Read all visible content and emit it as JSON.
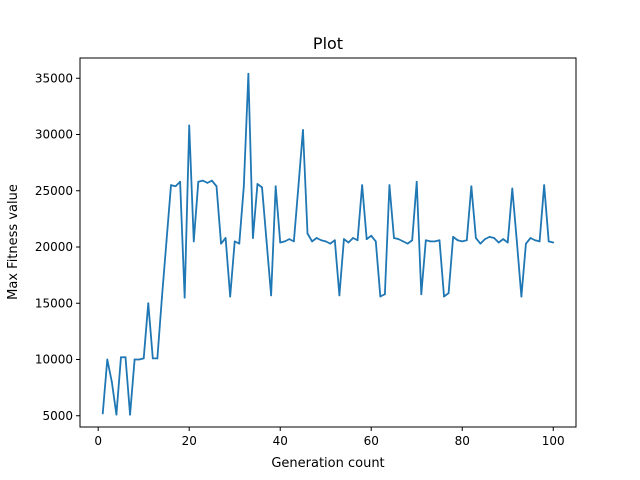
{
  "chart_data": {
    "type": "line",
    "title": "Plot",
    "xlabel": "Generation count",
    "ylabel": "Max Fitness value",
    "xlim": [
      -4,
      105
    ],
    "ylim": [
      4000,
      36800
    ],
    "xticks": [
      0,
      20,
      40,
      60,
      80,
      100
    ],
    "yticks": [
      5000,
      10000,
      15000,
      20000,
      25000,
      30000,
      35000
    ],
    "grid": false,
    "series": [
      {
        "color": "#1f77b4",
        "x": [
          1,
          2,
          3,
          4,
          5,
          6,
          7,
          8,
          9,
          10,
          11,
          12,
          13,
          14,
          15,
          16,
          17,
          18,
          19,
          20,
          21,
          22,
          23,
          24,
          25,
          26,
          27,
          28,
          29,
          30,
          31,
          32,
          33,
          34,
          35,
          36,
          37,
          38,
          39,
          40,
          41,
          42,
          43,
          44,
          45,
          46,
          47,
          48,
          49,
          50,
          51,
          52,
          53,
          54,
          55,
          56,
          57,
          58,
          59,
          60,
          61,
          62,
          63,
          64,
          65,
          66,
          67,
          68,
          69,
          70,
          71,
          72,
          73,
          74,
          75,
          76,
          77,
          78,
          79,
          80,
          81,
          82,
          83,
          84,
          85,
          86,
          87,
          88,
          89,
          90,
          91,
          92,
          93,
          94,
          95,
          96,
          97,
          98,
          99,
          100
        ],
        "y": [
          5200,
          10000,
          8000,
          5100,
          10200,
          10200,
          5100,
          10000,
          10000,
          10100,
          15000,
          10100,
          10100,
          15500,
          20500,
          25500,
          25400,
          25800,
          15500,
          30800,
          20500,
          25800,
          25900,
          25700,
          25900,
          25400,
          20300,
          20800,
          15600,
          20500,
          20300,
          25400,
          35400,
          20800,
          25600,
          25300,
          20500,
          15700,
          25400,
          20400,
          20500,
          20700,
          20500,
          25400,
          30400,
          21200,
          20500,
          20800,
          20600,
          20500,
          20300,
          20600,
          15700,
          20700,
          20400,
          20800,
          20600,
          25500,
          20700,
          21000,
          20500,
          15600,
          15800,
          25500,
          20800,
          20700,
          20500,
          20300,
          20600,
          25800,
          15800,
          20600,
          20500,
          20500,
          20600,
          15600,
          15900,
          20900,
          20600,
          20500,
          20600,
          25400,
          20800,
          20300,
          20700,
          20900,
          20800,
          20400,
          20700,
          20400,
          25200,
          20500,
          15600,
          20300,
          20800,
          20600,
          20500,
          25500,
          20500,
          20400
        ]
      }
    ]
  }
}
